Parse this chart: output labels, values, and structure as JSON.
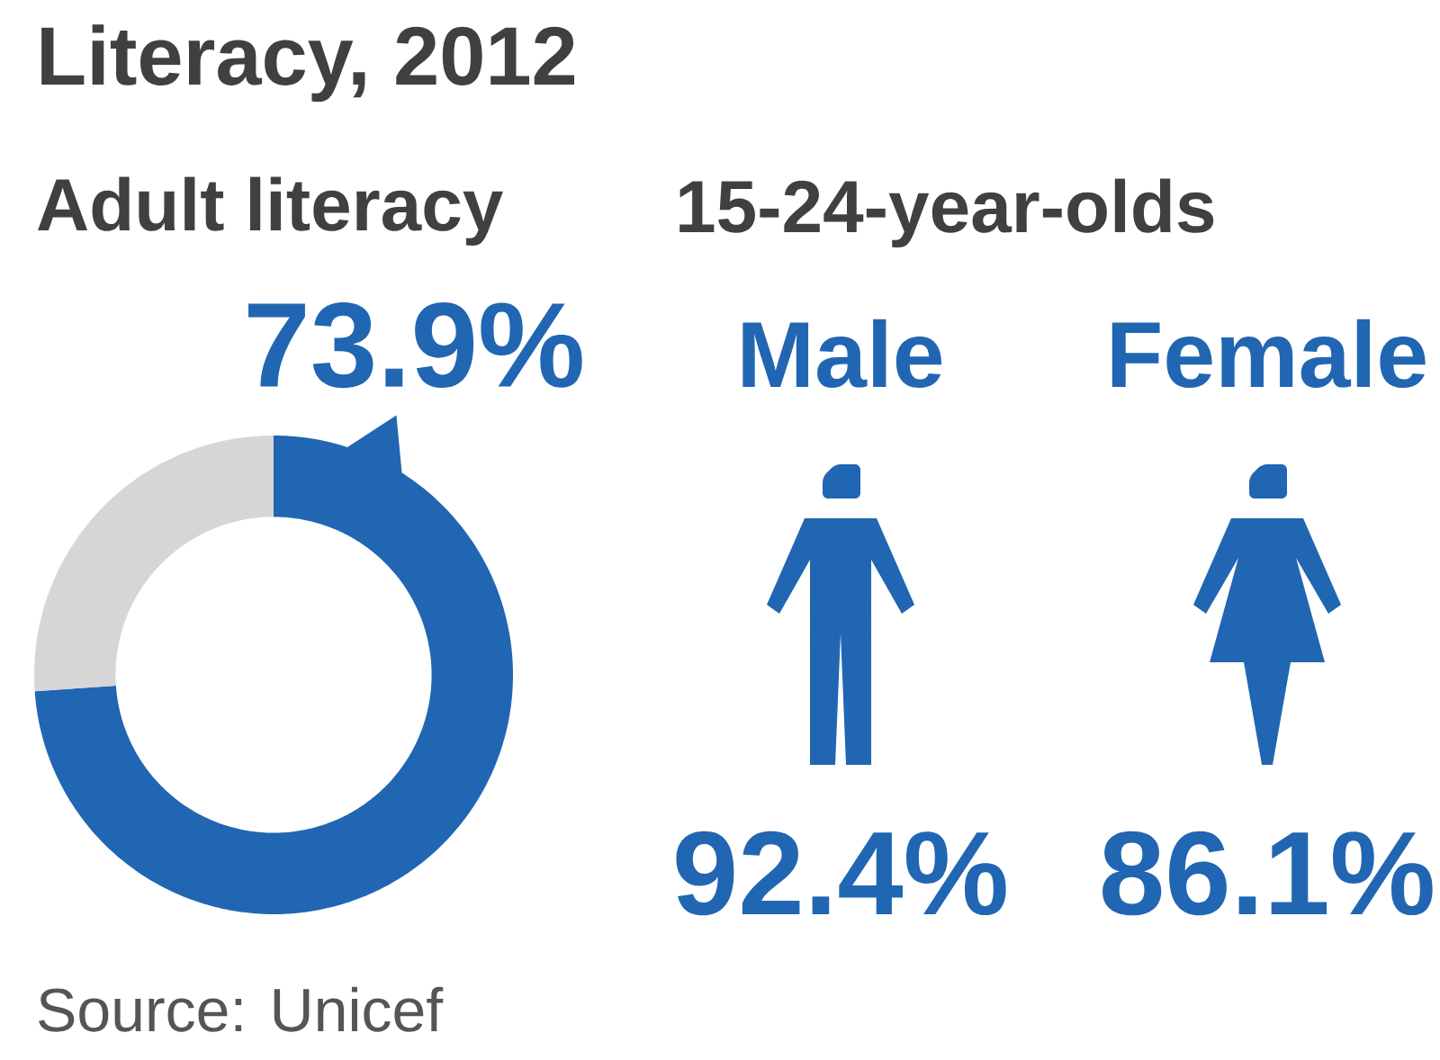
{
  "chart_data": [
    {
      "type": "donut",
      "title": "Literacy, 2012",
      "subtitle": "Adult literacy",
      "categories": [
        null,
        null
      ],
      "values": [
        73.9,
        26.1
      ],
      "colors": [
        "#2166b2",
        "#d6d6d6"
      ],
      "value_labels": [
        "73.9%",
        null
      ],
      "annotations": [
        "Source: Unicef"
      ]
    },
    {
      "type": "other",
      "title": "15-24-year-olds",
      "categories": [
        "Male",
        "Female"
      ],
      "values": [
        92.4,
        86.1
      ],
      "value_labels": [
        "92.4%",
        "86.1%"
      ],
      "color": "#2166b2"
    }
  ]
}
